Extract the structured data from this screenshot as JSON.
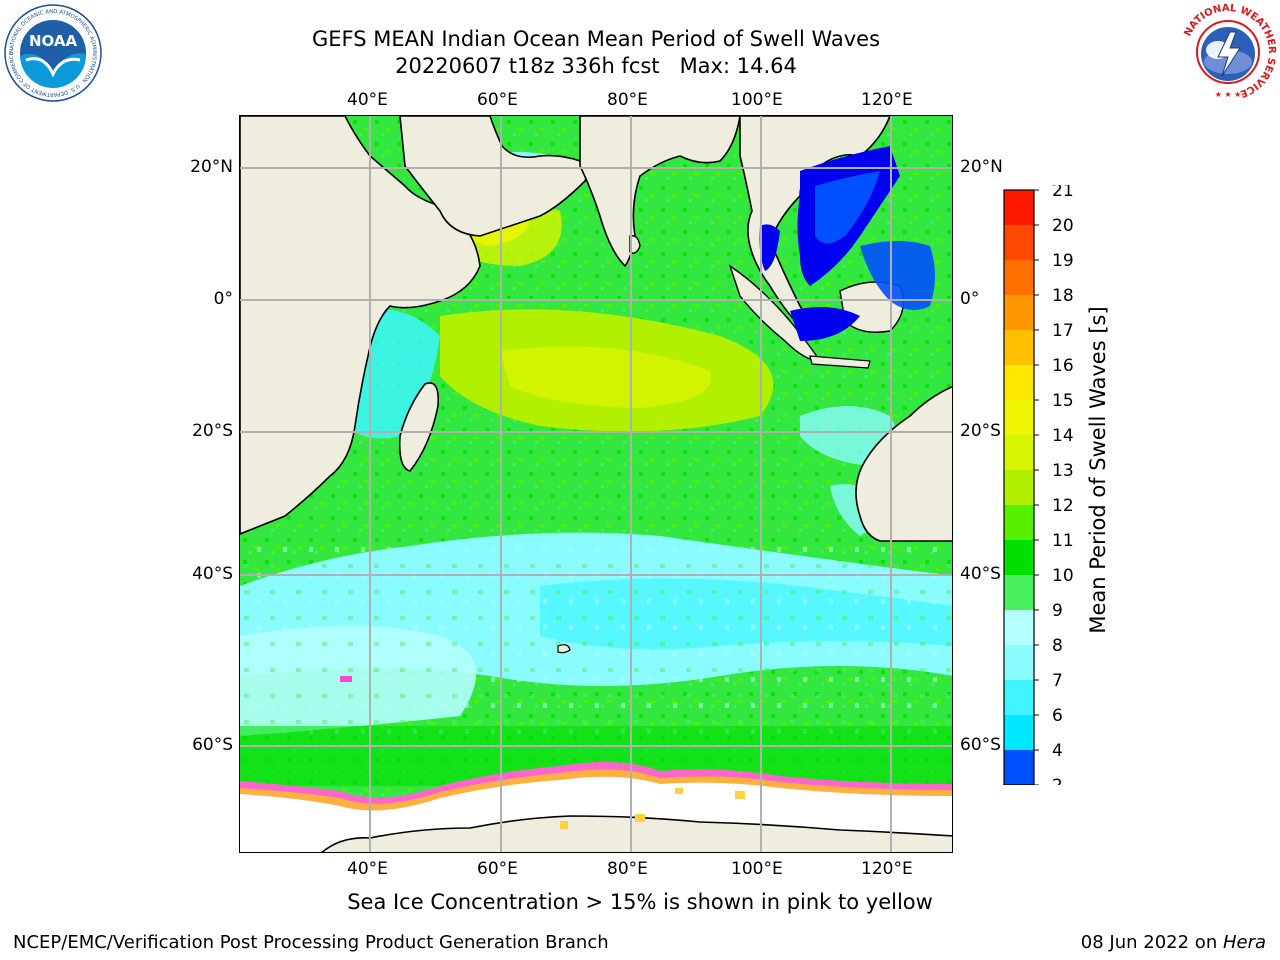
{
  "header": {
    "title_line1": "GEFS MEAN Indian Ocean Mean Period of Swell Waves",
    "title_line2": "20220607 t18z 336h fcst   Max: 14.64"
  },
  "map": {
    "lon_ticks": [
      "40°E",
      "60°E",
      "80°E",
      "100°E",
      "120°E"
    ],
    "lat_ticks": [
      "20°N",
      "0°",
      "20°S",
      "40°S",
      "60°S"
    ],
    "land_color": "#efedde",
    "ice_free_color": "#ffffff",
    "grid_color": "#b0b0b0"
  },
  "colorbar": {
    "title": "Mean Period of Swell Waves [s]",
    "tick_labels": [
      "2",
      "4",
      "6",
      "7",
      "8",
      "9",
      "10",
      "11",
      "12",
      "13",
      "14",
      "15",
      "16",
      "17",
      "18",
      "19",
      "20",
      "21"
    ],
    "colors": [
      "#0050ff",
      "#00e8ff",
      "#40f5ff",
      "#8afbff",
      "#b4ffff",
      "#48f060",
      "#00e000",
      "#58f000",
      "#b0f000",
      "#d8f500",
      "#f0f500",
      "#ffe800",
      "#ffc000",
      "#ff9800",
      "#ff7000",
      "#ff4800",
      "#ff1800"
    ],
    "under_color": "#0000f0"
  },
  "footer": {
    "ice_note": "Sea Ice Concentration > 15% is shown in pink to yellow",
    "left": "NCEP/EMC/Verification Post Processing Product Generation Branch",
    "right_date": "08 Jun 2022 on ",
    "right_machine": "Hera"
  },
  "logos": {
    "noaa": "NOAA",
    "noaa_ring": "NATIONAL OCEANIC AND ATMOSPHERIC ADMINISTRATION · U.S. DEPARTMENT OF COMMERCE",
    "nws_ring": "NATIONAL WEATHER SERVICE"
  }
}
